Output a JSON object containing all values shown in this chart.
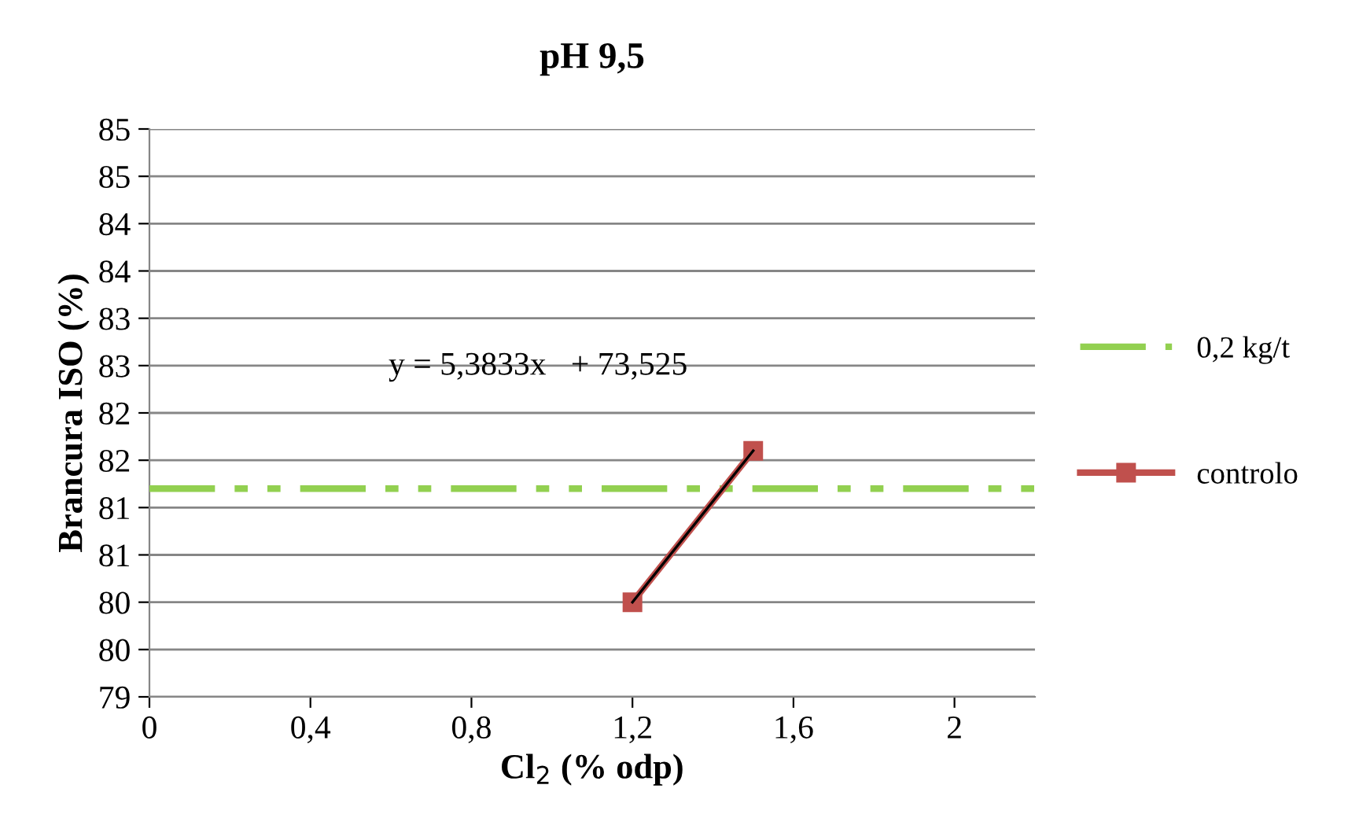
{
  "chart_data": {
    "type": "line",
    "title": "pH 9,5",
    "xlabel": "Cl$_{2}$ (% odp)",
    "ylabel": "Brancura ISO (%)",
    "xlim": [
      0,
      2.2
    ],
    "xticks": [
      0,
      {
        "value": 0.4,
        "label": "0,4"
      },
      {
        "value": 0.8,
        "label": "0,8"
      },
      {
        "value": 1.2,
        "label": "1,2"
      },
      {
        "value": 1.6,
        "label": "1,6"
      },
      2
    ],
    "ylim": [
      79,
      85
    ],
    "yticks": [
      79,
      {
        "value": 79.5,
        "label": "80"
      },
      80,
      {
        "value": 80.5,
        "label": "81"
      },
      81,
      {
        "value": 81.5,
        "label": "82"
      },
      82,
      {
        "value": 82.5,
        "label": "83"
      },
      83,
      {
        "value": 83.5,
        "label": "84"
      },
      84,
      {
        "value": 84.5,
        "label": "85"
      },
      85
    ],
    "grid": "y",
    "legend": "right",
    "series": [
      {
        "name": "0,2 kg/t",
        "color": "#92d050",
        "x": [
          0,
          2.2
        ],
        "values": [
          81.2,
          81.2
        ],
        "line_style": "dashed",
        "marker": "none"
      },
      {
        "name": "controlo",
        "color": "#c0504d",
        "x": [
          1.2,
          1.5
        ],
        "values": [
          80.0,
          81.6
        ],
        "line_style": "solid",
        "marker": "square"
      },
      {
        "color": "#000000",
        "x": [
          1.2,
          1.5
        ],
        "values": [
          80.0,
          81.6
        ],
        "line_style": "solid",
        "marker": "none"
      }
    ],
    "annotations": [
      "y = 5,3833x   + 73,525"
    ]
  }
}
